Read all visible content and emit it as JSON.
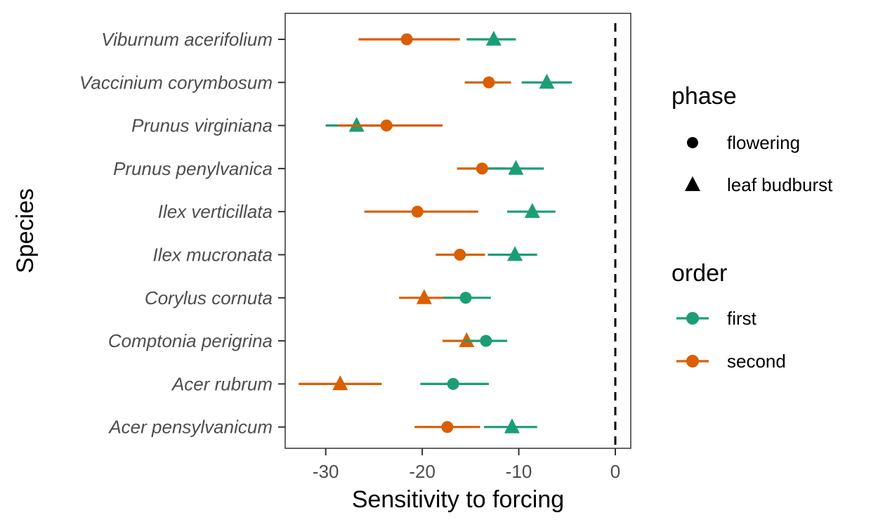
{
  "chart_data": {
    "type": "scatter",
    "subtype": "point-range (dot with error bars)",
    "xlabel": "Sensitivity to forcing",
    "ylabel": "Species",
    "xlim": [
      -34.2,
      1.6
    ],
    "x_ticks": [
      -30,
      -20,
      -10,
      0
    ],
    "x_tick_labels": [
      "-30",
      "-20",
      "-10",
      "0"
    ],
    "reference_line": {
      "x": 0,
      "style": "dashed",
      "color": "#000000"
    },
    "grid": false,
    "categories": [
      "Viburnum acerifolium",
      "Vaccinium corymbosum",
      "Prunus virginiana",
      "Prunus penylvanica",
      "Ilex verticillata",
      "Ilex mucronata",
      "Corylus cornuta",
      "Comptonia perigrina",
      "Acer rubrum",
      "Acer pensylvanicum"
    ],
    "colors": {
      "first": "#1b9e77",
      "second": "#d95f02"
    },
    "legend": {
      "placement": "right",
      "phase": {
        "title": "phase",
        "items": [
          {
            "label": "flowering",
            "shape": "circle"
          },
          {
            "label": "leaf budburst",
            "shape": "triangle"
          }
        ]
      },
      "order": {
        "title": "order",
        "items": [
          {
            "label": "first",
            "key": "first"
          },
          {
            "label": "second",
            "key": "second"
          }
        ]
      }
    },
    "points": [
      {
        "species": "Viburnum acerifolium",
        "phase": "flowering",
        "order": "second",
        "x": -21.6,
        "low": -26.6,
        "high": -16.1
      },
      {
        "species": "Viburnum acerifolium",
        "phase": "leaf budburst",
        "order": "first",
        "x": -12.6,
        "low": -15.4,
        "high": -10.3
      },
      {
        "species": "Vaccinium corymbosum",
        "phase": "flowering",
        "order": "second",
        "x": -13.1,
        "low": -15.6,
        "high": -10.8
      },
      {
        "species": "Vaccinium corymbosum",
        "phase": "leaf budburst",
        "order": "first",
        "x": -7.1,
        "low": -9.7,
        "high": -4.5
      },
      {
        "species": "Prunus virginiana",
        "phase": "leaf budburst",
        "order": "first",
        "x": -26.8,
        "low": -30.0,
        "high": -24.0
      },
      {
        "species": "Prunus virginiana",
        "phase": "flowering",
        "order": "second",
        "x": -23.7,
        "low": -28.7,
        "high": -17.9
      },
      {
        "species": "Prunus penylvanica",
        "phase": "flowering",
        "order": "second",
        "x": -13.8,
        "low": -16.4,
        "high": -11.3
      },
      {
        "species": "Prunus penylvanica",
        "phase": "leaf budburst",
        "order": "first",
        "x": -10.3,
        "low": -13.1,
        "high": -7.4
      },
      {
        "species": "Ilex verticillata",
        "phase": "flowering",
        "order": "second",
        "x": -20.5,
        "low": -26.0,
        "high": -14.2
      },
      {
        "species": "Ilex verticillata",
        "phase": "leaf budburst",
        "order": "first",
        "x": -8.6,
        "low": -11.2,
        "high": -6.2
      },
      {
        "species": "Ilex mucronata",
        "phase": "flowering",
        "order": "second",
        "x": -16.1,
        "low": -18.6,
        "high": -13.5
      },
      {
        "species": "Ilex mucronata",
        "phase": "leaf budburst",
        "order": "first",
        "x": -10.4,
        "low": -13.2,
        "high": -8.1
      },
      {
        "species": "Corylus cornuta",
        "phase": "leaf budburst",
        "order": "second",
        "x": -19.8,
        "low": -22.4,
        "high": -16.9
      },
      {
        "species": "Corylus cornuta",
        "phase": "flowering",
        "order": "first",
        "x": -15.5,
        "low": -17.8,
        "high": -12.9
      },
      {
        "species": "Comptonia perigrina",
        "phase": "leaf budburst",
        "order": "second",
        "x": -15.4,
        "low": -17.9,
        "high": -13.0
      },
      {
        "species": "Comptonia perigrina",
        "phase": "flowering",
        "order": "first",
        "x": -13.4,
        "low": -15.7,
        "high": -11.2
      },
      {
        "species": "Acer rubrum",
        "phase": "leaf budburst",
        "order": "second",
        "x": -28.5,
        "low": -32.8,
        "high": -24.2
      },
      {
        "species": "Acer rubrum",
        "phase": "flowering",
        "order": "first",
        "x": -16.8,
        "low": -20.2,
        "high": -13.1
      },
      {
        "species": "Acer pensylvanicum",
        "phase": "flowering",
        "order": "second",
        "x": -17.4,
        "low": -20.8,
        "high": -14.0
      },
      {
        "species": "Acer pensylvanicum",
        "phase": "leaf budburst",
        "order": "first",
        "x": -10.7,
        "low": -13.6,
        "high": -8.1
      }
    ]
  }
}
